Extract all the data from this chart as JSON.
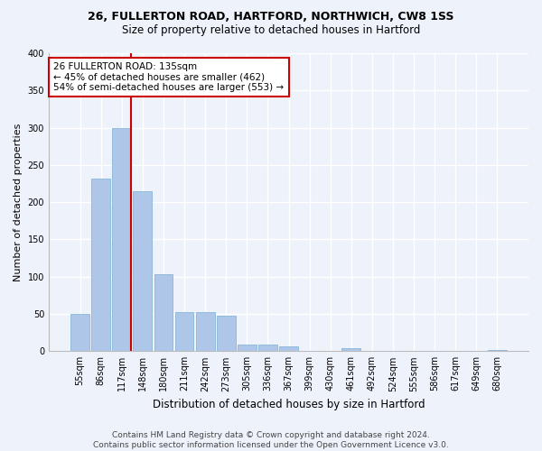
{
  "title1": "26, FULLERTON ROAD, HARTFORD, NORTHWICH, CW8 1SS",
  "title2": "Size of property relative to detached houses in Hartford",
  "xlabel": "Distribution of detached houses by size in Hartford",
  "ylabel": "Number of detached properties",
  "categories": [
    "55sqm",
    "86sqm",
    "117sqm",
    "148sqm",
    "180sqm",
    "211sqm",
    "242sqm",
    "273sqm",
    "305sqm",
    "336sqm",
    "367sqm",
    "399sqm",
    "430sqm",
    "461sqm",
    "492sqm",
    "524sqm",
    "555sqm",
    "586sqm",
    "617sqm",
    "649sqm",
    "680sqm"
  ],
  "values": [
    50,
    232,
    300,
    215,
    103,
    52,
    52,
    48,
    9,
    9,
    6,
    0,
    0,
    4,
    0,
    0,
    0,
    0,
    0,
    0,
    2
  ],
  "bar_color": "#aec6e8",
  "bar_edge_color": "#7aafd4",
  "vline_color": "#cc0000",
  "annotation_text": "26 FULLERTON ROAD: 135sqm\n← 45% of detached houses are smaller (462)\n54% of semi-detached houses are larger (553) →",
  "annotation_box_color": "#ffffff",
  "annotation_box_edge": "#cc0000",
  "ylim": [
    0,
    400
  ],
  "yticks": [
    0,
    50,
    100,
    150,
    200,
    250,
    300,
    350,
    400
  ],
  "background_color": "#eef2fb",
  "grid_color": "#ffffff",
  "footer": "Contains HM Land Registry data © Crown copyright and database right 2024.\nContains public sector information licensed under the Open Government Licence v3.0."
}
